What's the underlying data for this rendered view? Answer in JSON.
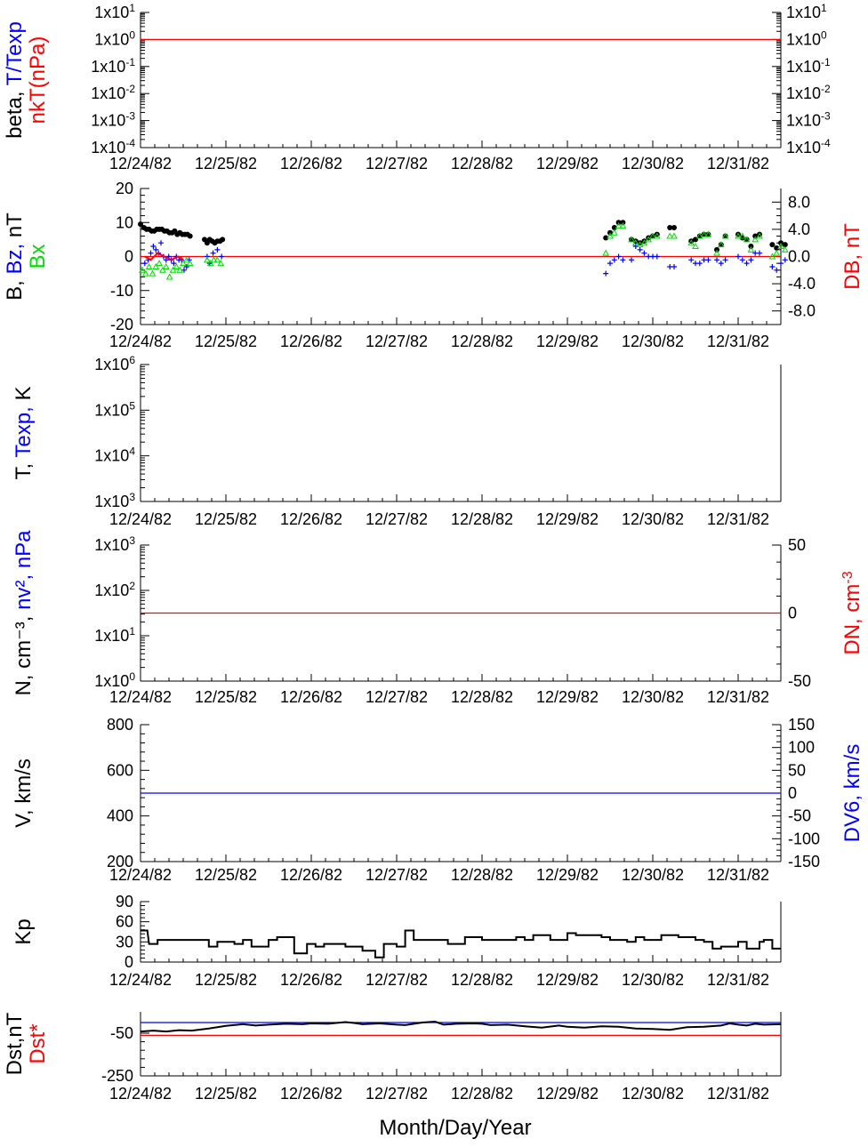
{
  "dates": [
    "12/24/82",
    "12/25/82",
    "12/26/82",
    "12/27/82",
    "12/28/82",
    "12/29/82",
    "12/30/82",
    "12/31/82"
  ],
  "xlabel": "Month/Day/Year",
  "colors": {
    "black": "#000000",
    "blue": "#0000ff",
    "red": "#ff0000",
    "green": "#00dd00",
    "axis": "#000000"
  },
  "chart_data": [
    {
      "id": "beta",
      "type": "line",
      "scale": "log",
      "ylim": [
        0.0001,
        10
      ],
      "ytick_exponents": [
        "1",
        "0",
        "-1",
        "-2",
        "-3",
        "-4"
      ],
      "ylabel_parts": [
        {
          "text": "beta, ",
          "color": "black"
        },
        {
          "text": "T/Texp",
          "color": "blue"
        }
      ],
      "ylabel2_parts": [
        {
          "text": "nkT(nPa)",
          "color": "red"
        }
      ],
      "reference_lines": [
        {
          "value": 1,
          "color": "red"
        }
      ],
      "series": []
    },
    {
      "id": "bfield",
      "type": "scatter",
      "ylim": [
        -20,
        20
      ],
      "yticks": [
        "20",
        "10",
        "0",
        "-10",
        "-20"
      ],
      "right_ylim": [
        -10,
        10
      ],
      "right_yticks": [
        "8.0",
        "4.0",
        "0.0",
        "-4.0",
        "-8.0"
      ],
      "ylabel_parts": [
        {
          "text": "B, ",
          "color": "black"
        },
        {
          "text": "Bz, ",
          "color": "blue"
        },
        {
          "text": "nT",
          "color": "black"
        }
      ],
      "ylabel2_parts": [
        {
          "text": "Bx",
          "color": "green"
        }
      ],
      "right_label_parts": [
        {
          "text": "DB, nT",
          "color": "red"
        }
      ],
      "reference_lines": [
        {
          "value": 0,
          "color": "red"
        }
      ],
      "series": [
        {
          "color": "black",
          "marker": "dot",
          "x": [
            0.0,
            0.04,
            0.07,
            0.1,
            0.13,
            0.16,
            0.19,
            0.22,
            0.25,
            0.28,
            0.31,
            0.34,
            0.37,
            0.4,
            0.43,
            0.46,
            0.49,
            0.52,
            0.55,
            0.58,
            0.75,
            0.78,
            0.81,
            0.84,
            0.87,
            0.9,
            0.93,
            0.96,
            5.45,
            5.5,
            5.55,
            5.6,
            5.65,
            5.75,
            5.8,
            5.85,
            5.9,
            5.95,
            6.0,
            6.05,
            6.2,
            6.25,
            6.45,
            6.5,
            6.55,
            6.6,
            6.65,
            6.75,
            6.8,
            6.85,
            7.0,
            7.05,
            7.1,
            7.15,
            7.2,
            7.25,
            7.4,
            7.45,
            7.5,
            7.55
          ],
          "y": [
            9.5,
            8.5,
            8,
            8,
            7.5,
            7.5,
            8,
            8,
            8,
            7.5,
            7.5,
            7,
            7,
            7.5,
            6.5,
            7,
            6.5,
            6.5,
            6.5,
            6,
            5,
            4,
            5,
            4.5,
            4,
            4.5,
            4.5,
            5,
            5.5,
            7,
            8.5,
            10,
            10,
            5,
            4.5,
            4,
            4.5,
            5.5,
            6,
            6.5,
            8.5,
            8.5,
            4.5,
            5,
            6,
            6.5,
            6.5,
            2,
            3.5,
            6,
            6.5,
            5.5,
            5,
            3,
            6,
            6.5,
            3.5,
            2.5,
            4,
            3.5
          ]
        },
        {
          "color": "blue",
          "marker": "plus",
          "x": [
            0.05,
            0.09,
            0.12,
            0.15,
            0.18,
            0.21,
            0.24,
            0.27,
            0.3,
            0.33,
            0.36,
            0.39,
            0.42,
            0.45,
            0.48,
            0.51,
            0.54,
            0.57,
            0.78,
            0.81,
            0.85,
            0.9,
            0.95,
            5.45,
            5.5,
            5.55,
            5.6,
            5.65,
            5.75,
            5.8,
            5.85,
            5.9,
            5.95,
            6.0,
            6.05,
            6.2,
            6.25,
            6.45,
            6.5,
            6.55,
            6.6,
            6.65,
            6.75,
            6.8,
            6.85,
            7.0,
            7.05,
            7.1,
            7.15,
            7.2,
            7.25,
            7.4,
            7.45,
            7.5,
            7.55
          ],
          "y": [
            -2,
            -1,
            1,
            3,
            2,
            1,
            4,
            0,
            -1,
            0,
            -1,
            -2,
            0,
            -1,
            -1,
            -4,
            -3,
            -1,
            0,
            -2,
            1,
            2,
            0,
            -5,
            -2,
            -1,
            0,
            -1,
            -1,
            3,
            2,
            1,
            0,
            0,
            0,
            -3,
            -3,
            -1,
            -2,
            -2,
            -1,
            -1,
            -1,
            -2,
            -1,
            0,
            -1,
            -2,
            -1,
            1,
            1,
            -3,
            -4,
            -2,
            -1
          ]
        },
        {
          "color": "green",
          "marker": "triangle",
          "x": [
            0.02,
            0.06,
            0.1,
            0.14,
            0.18,
            0.22,
            0.26,
            0.3,
            0.34,
            0.38,
            0.42,
            0.46,
            0.5,
            0.54,
            0.58,
            0.78,
            0.82,
            0.86,
            0.9,
            0.94,
            5.45,
            5.5,
            5.55,
            5.6,
            5.65,
            5.75,
            5.8,
            5.85,
            5.9,
            5.95,
            6.0,
            6.05,
            6.2,
            6.25,
            6.45,
            6.5,
            6.55,
            6.6,
            6.65,
            6.75,
            6.8,
            6.85,
            7.0,
            7.05,
            7.1,
            7.15,
            7.2,
            7.25,
            7.4,
            7.45,
            7.5,
            7.55
          ],
          "y": [
            -4,
            -5,
            -3,
            -5,
            -3,
            -2,
            -4,
            -3,
            -6,
            -4,
            -3,
            -4,
            -2,
            -1,
            -2,
            -1,
            -2,
            -1,
            -1,
            -2,
            1,
            6,
            7,
            9,
            9,
            5,
            4,
            3.5,
            4,
            5,
            6,
            6,
            6,
            6,
            4,
            3,
            6,
            6.5,
            6.5,
            1,
            3.5,
            6,
            6,
            6,
            5,
            2,
            5,
            6,
            0,
            1,
            3,
            2
          ]
        },
        {
          "color": "red",
          "marker": "line",
          "x": [
            0.05,
            0.12,
            0.2,
            0.28,
            0.36,
            0.44,
            0.5
          ],
          "y": [
            0,
            -1,
            1,
            0,
            -1,
            0,
            -1
          ]
        }
      ]
    },
    {
      "id": "temp",
      "type": "line",
      "scale": "log",
      "ylim": [
        1000,
        1000000
      ],
      "ytick_exponents": [
        "6",
        "5",
        "4",
        "3"
      ],
      "ylabel_parts": [
        {
          "text": "T, ",
          "color": "black"
        },
        {
          "text": "Texp, ",
          "color": "blue"
        },
        {
          "text": "K",
          "color": "black"
        }
      ],
      "reference_lines": [],
      "series": []
    },
    {
      "id": "density",
      "type": "line",
      "scale": "log",
      "ylim": [
        1,
        1000
      ],
      "ytick_exponents": [
        "3",
        "2",
        "1",
        "0"
      ],
      "right_ylim": [
        -50,
        50
      ],
      "right_yticks": [
        "50",
        "0",
        "-50"
      ],
      "ylabel_parts": [
        {
          "text": "N, cm",
          "color": "black"
        },
        {
          "text": "⁻³",
          "color": "black"
        },
        {
          "text": ", ",
          "color": "black"
        },
        {
          "text": "nv², nPa",
          "color": "blue"
        }
      ],
      "right_label_parts": [
        {
          "text": "DN, cm",
          "color": "red"
        },
        {
          "text": "-3",
          "color": "red",
          "sup": true
        }
      ],
      "reference_lines": [
        {
          "value": 0,
          "axis": "right",
          "color": "red"
        }
      ],
      "series": []
    },
    {
      "id": "velocity",
      "type": "line",
      "ylim": [
        200,
        800
      ],
      "yticks": [
        "800",
        "600",
        "400",
        "200"
      ],
      "right_ylim": [
        -150,
        150
      ],
      "right_yticks": [
        "150",
        "100",
        "50",
        "0",
        "-50",
        "-100",
        "-150"
      ],
      "ylabel_parts": [
        {
          "text": "V, km/s",
          "color": "black"
        }
      ],
      "right_label_parts": [
        {
          "text": "DV6, km/s",
          "color": "blue"
        }
      ],
      "reference_lines": [
        {
          "value": 0,
          "axis": "right",
          "color": "blue"
        }
      ],
      "series": []
    },
    {
      "id": "kp",
      "type": "line",
      "ylim": [
        0,
        90
      ],
      "yticks": [
        "90",
        "60",
        "30",
        "0"
      ],
      "ylabel_parts": [
        {
          "text": "Kp",
          "color": "black"
        }
      ],
      "reference_lines": [],
      "series": [
        {
          "color": "black",
          "marker": "line",
          "x": [
            0.0,
            0.08,
            0.1,
            0.2,
            0.2,
            0.8,
            0.8,
            0.9,
            0.9,
            1.1,
            1.1,
            1.2,
            1.2,
            1.3,
            1.3,
            1.5,
            1.5,
            1.6,
            1.6,
            1.8,
            1.8,
            1.95,
            1.95,
            2.05,
            2.05,
            2.15,
            2.15,
            2.4,
            2.4,
            2.6,
            2.6,
            2.75,
            2.75,
            2.85,
            2.85,
            3.0,
            3.0,
            3.1,
            3.1,
            3.2,
            3.2,
            3.6,
            3.6,
            3.8,
            3.8,
            4.0,
            4.0,
            4.4,
            4.4,
            4.5,
            4.5,
            4.6,
            4.6,
            4.8,
            4.8,
            5.0,
            5.0,
            5.1,
            5.1,
            5.4,
            5.4,
            5.5,
            5.5,
            5.7,
            5.7,
            5.8,
            5.8,
            5.9,
            5.9,
            6.1,
            6.1,
            6.3,
            6.3,
            6.5,
            6.5,
            6.6,
            6.6,
            6.7,
            6.7,
            6.8,
            6.8,
            7.0,
            7.0,
            7.1,
            7.1,
            7.25,
            7.25,
            7.3,
            7.3,
            7.4,
            7.4,
            7.5
          ],
          "y": [
            47,
            47,
            27,
            27,
            33,
            33,
            23,
            23,
            30,
            30,
            27,
            27,
            33,
            33,
            23,
            23,
            33,
            33,
            37,
            37,
            13,
            13,
            27,
            27,
            23,
            23,
            27,
            27,
            23,
            23,
            17,
            17,
            7,
            7,
            27,
            27,
            23,
            23,
            47,
            47,
            33,
            33,
            27,
            27,
            37,
            37,
            33,
            33,
            37,
            37,
            33,
            33,
            40,
            40,
            33,
            33,
            43,
            43,
            40,
            40,
            37,
            37,
            33,
            33,
            30,
            30,
            37,
            37,
            33,
            33,
            40,
            40,
            37,
            37,
            33,
            33,
            30,
            30,
            20,
            20,
            23,
            23,
            30,
            30,
            20,
            20,
            30,
            30,
            33,
            33,
            20,
            20
          ]
        }
      ]
    },
    {
      "id": "dst",
      "type": "line",
      "ylim": [
        -250,
        50
      ],
      "yticks": [
        "-50",
        "-250"
      ],
      "ylabel_parts": [
        {
          "text": "Dst,nT",
          "color": "black"
        }
      ],
      "ylabel2_parts": [
        {
          "text": "Dst*",
          "color": "red"
        }
      ],
      "reference_lines": [
        {
          "value": 0,
          "color": "blue"
        },
        {
          "value": -60,
          "color": "red"
        }
      ],
      "series": [
        {
          "color": "black",
          "marker": "line",
          "x": [
            0.0,
            0.15,
            0.3,
            0.45,
            0.6,
            0.8,
            1.0,
            1.2,
            1.35,
            1.5,
            1.7,
            1.9,
            2.0,
            2.2,
            2.4,
            2.5,
            2.6,
            2.8,
            3.0,
            3.1,
            3.3,
            3.45,
            3.55,
            3.7,
            3.9,
            4.0,
            4.1,
            4.3,
            4.5,
            4.7,
            4.9,
            5.0,
            5.2,
            5.4,
            5.6,
            5.8,
            6.0,
            6.2,
            6.4,
            6.6,
            6.8,
            6.9,
            7.0,
            7.1,
            7.2,
            7.3,
            7.5
          ],
          "y": [
            -42,
            -38,
            -42,
            -36,
            -38,
            -28,
            -16,
            -8,
            -14,
            -10,
            -6,
            -8,
            -4,
            -6,
            2,
            -2,
            -8,
            -4,
            -10,
            -12,
            0,
            4,
            -10,
            -6,
            -4,
            -6,
            -12,
            -10,
            -18,
            -24,
            -14,
            -20,
            -24,
            -18,
            -20,
            -28,
            -30,
            -34,
            -22,
            -20,
            -14,
            -4,
            -10,
            -14,
            -6,
            -10,
            -8
          ]
        }
      ]
    }
  ]
}
